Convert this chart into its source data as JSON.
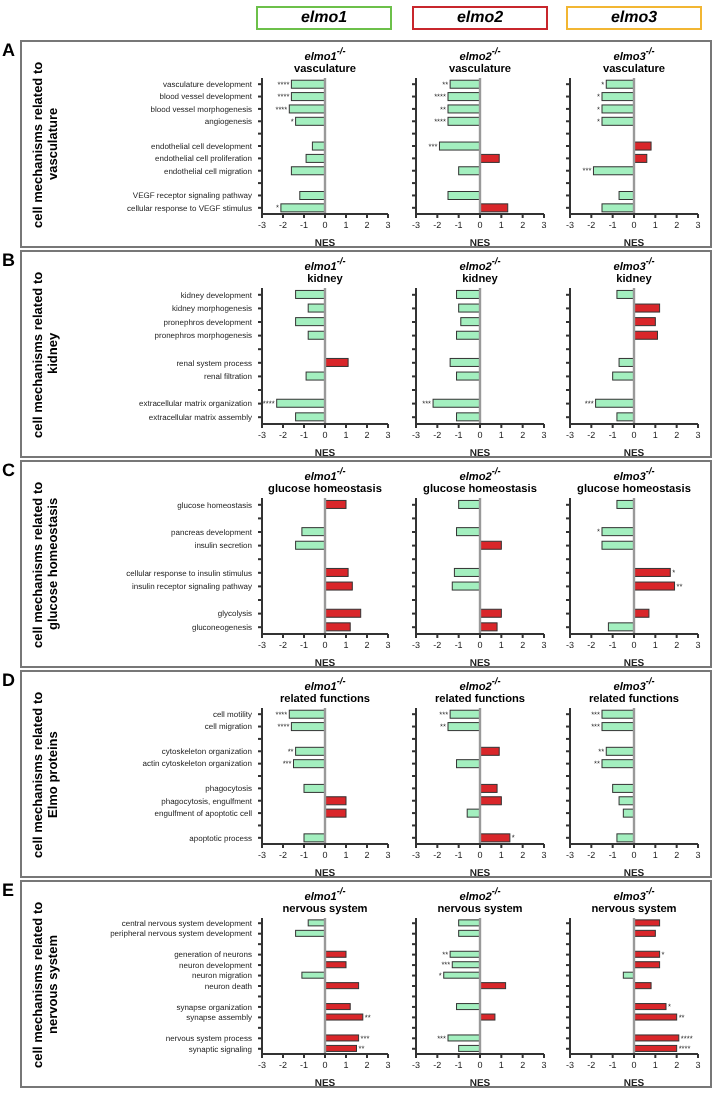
{
  "chart_data": [
    {
      "type": "other",
      "annotations": [
        "elmo1",
        "elmo2",
        "elmo3"
      ],
      "colors": [
        "#6cc04a",
        "#c8262c",
        "#f2b632"
      ]
    },
    {
      "type": "bar",
      "orientation": "horizontal",
      "annotations": [
        "A"
      ],
      "ylabel": "cell mechanisms related to vasculature",
      "title": "elmo1$^{-/-}$",
      "subtitle": "vasculature",
      "xlabel": "NES",
      "categories": [
        "vasculature development",
        "blood vessel development",
        "blood vessel morphogenesis",
        "angiogenesis",
        null,
        "endothelial cell development",
        "endothelial cell proliferation",
        "endothelial cell migration",
        null,
        "VEGF receptor signaling pathway",
        "cellular response to VEGF stimulus"
      ],
      "values": [
        -1.6,
        -1.6,
        -1.7,
        -1.4,
        null,
        -0.6,
        -0.9,
        -1.6,
        null,
        -1.2,
        -2.1
      ],
      "colors": [
        "#a3efbf",
        "#a3efbf",
        "#a3efbf",
        "#a3efbf",
        null,
        "#a3efbf",
        "#a3efbf",
        "#a3efbf",
        null,
        "#a3efbf",
        "#a3efbf"
      ],
      "value_labels": [
        "****",
        "****",
        "****",
        "*",
        null,
        null,
        null,
        null,
        null,
        null,
        "*"
      ],
      "xlim": [
        -3,
        3
      ],
      "xticks": [
        -3,
        -2,
        -1,
        0,
        1,
        2,
        3
      ],
      "ref_lines": [
        {
          "axis": "x",
          "value": 0,
          "color": "#999999"
        }
      ]
    },
    {
      "type": "bar",
      "orientation": "horizontal",
      "title": "elmo2$^{-/-}$",
      "subtitle": "vasculature",
      "xlabel": "NES",
      "categories": [
        null,
        null,
        null,
        null,
        null,
        null,
        null,
        null,
        null,
        null,
        null
      ],
      "values": [
        -1.4,
        -1.5,
        -1.5,
        -1.5,
        null,
        -1.9,
        0.9,
        -1.0,
        null,
        -1.5,
        1.3
      ],
      "colors": [
        "#a3efbf",
        "#a3efbf",
        "#a3efbf",
        "#a3efbf",
        null,
        "#a3efbf",
        "#d9262a",
        "#a3efbf",
        null,
        "#a3efbf",
        "#d9262a"
      ],
      "value_labels": [
        "**",
        "****",
        "**",
        "****",
        null,
        "***",
        null,
        null,
        null,
        null,
        null
      ],
      "xlim": [
        -3,
        3
      ],
      "xticks": [
        -3,
        -2,
        -1,
        0,
        1,
        2,
        3
      ],
      "ref_lines": [
        {
          "axis": "x",
          "value": 0,
          "color": "#999999"
        }
      ]
    },
    {
      "type": "bar",
      "orientation": "horizontal",
      "title": "elmo3$^{-/-}$",
      "subtitle": "vasculature",
      "xlabel": "NES",
      "categories": [
        null,
        null,
        null,
        null,
        null,
        null,
        null,
        null,
        null,
        null,
        null
      ],
      "values": [
        -1.3,
        -1.5,
        -1.5,
        -1.5,
        null,
        0.8,
        0.6,
        -1.9,
        null,
        -0.7,
        -1.5
      ],
      "colors": [
        "#a3efbf",
        "#a3efbf",
        "#a3efbf",
        "#a3efbf",
        null,
        "#d9262a",
        "#d9262a",
        "#a3efbf",
        null,
        "#a3efbf",
        "#a3efbf"
      ],
      "value_labels": [
        "*",
        "*",
        "*",
        "*",
        null,
        null,
        null,
        "***",
        null,
        null,
        null
      ],
      "xlim": [
        -3,
        3
      ],
      "xticks": [
        -3,
        -2,
        -1,
        0,
        1,
        2,
        3
      ],
      "ref_lines": [
        {
          "axis": "x",
          "value": 0,
          "color": "#999999"
        }
      ]
    },
    {
      "type": "bar",
      "orientation": "horizontal",
      "annotations": [
        "B"
      ],
      "ylabel": "cell mechanisms related to kidney",
      "title": "elmo1$^{-/-}$",
      "subtitle": "kidney",
      "xlabel": "NES",
      "categories": [
        "kidney development",
        "kidney morphogenesis",
        "pronephros development",
        "pronephros morphogenesis",
        null,
        "renal system process",
        "renal filtration",
        null,
        "extracellular matrix organization",
        "extracellular matrix assembly"
      ],
      "values": [
        -1.4,
        -0.8,
        -1.4,
        -0.8,
        null,
        1.1,
        -0.9,
        null,
        -2.3,
        -1.4
      ],
      "colors": [
        "#a3efbf",
        "#a3efbf",
        "#a3efbf",
        "#a3efbf",
        null,
        "#d9262a",
        "#a3efbf",
        null,
        "#a3efbf",
        "#a3efbf"
      ],
      "value_labels": [
        null,
        null,
        null,
        null,
        null,
        null,
        null,
        null,
        "****",
        null
      ],
      "xlim": [
        -3,
        3
      ],
      "xticks": [
        -3,
        -2,
        -1,
        0,
        1,
        2,
        3
      ],
      "ref_lines": [
        {
          "axis": "x",
          "value": 0,
          "color": "#999999"
        }
      ]
    },
    {
      "type": "bar",
      "orientation": "horizontal",
      "title": "elmo2$^{-/-}$",
      "subtitle": "kidney",
      "xlabel": "NES",
      "categories": [
        null,
        null,
        null,
        null,
        null,
        null,
        null,
        null,
        null,
        null
      ],
      "values": [
        -1.1,
        -1.0,
        -0.9,
        -1.1,
        null,
        -1.4,
        -1.1,
        null,
        -2.2,
        -1.1
      ],
      "colors": [
        "#a3efbf",
        "#a3efbf",
        "#a3efbf",
        "#a3efbf",
        null,
        "#a3efbf",
        "#a3efbf",
        null,
        "#a3efbf",
        "#a3efbf"
      ],
      "value_labels": [
        null,
        null,
        null,
        null,
        null,
        null,
        null,
        null,
        "***",
        null
      ],
      "xlim": [
        -3,
        3
      ],
      "xticks": [
        -3,
        -2,
        -1,
        0,
        1,
        2,
        3
      ],
      "ref_lines": [
        {
          "axis": "x",
          "value": 0,
          "color": "#999999"
        }
      ]
    },
    {
      "type": "bar",
      "orientation": "horizontal",
      "title": "elmo3$^{-/-}$",
      "subtitle": "kidney",
      "xlabel": "NES",
      "categories": [
        null,
        null,
        null,
        null,
        null,
        null,
        null,
        null,
        null,
        null
      ],
      "values": [
        -0.8,
        1.2,
        1.0,
        1.1,
        null,
        -0.7,
        -1.0,
        null,
        -1.8,
        -0.8
      ],
      "colors": [
        "#a3efbf",
        "#d9262a",
        "#d9262a",
        "#d9262a",
        null,
        "#a3efbf",
        "#a3efbf",
        null,
        "#a3efbf",
        "#a3efbf"
      ],
      "value_labels": [
        null,
        null,
        null,
        null,
        null,
        null,
        null,
        null,
        "***",
        null
      ],
      "xlim": [
        -3,
        3
      ],
      "xticks": [
        -3,
        -2,
        -1,
        0,
        1,
        2,
        3
      ],
      "ref_lines": [
        {
          "axis": "x",
          "value": 0,
          "color": "#999999"
        }
      ]
    },
    {
      "type": "bar",
      "orientation": "horizontal",
      "annotations": [
        "C"
      ],
      "ylabel": "cell mechanisms related to glucose homeostasis",
      "title": "elmo1$^{-/-}$",
      "subtitle": "glucose homeostasis",
      "xlabel": "NES",
      "categories": [
        "glucose homeostasis",
        null,
        "pancreas development",
        "insulin secretion",
        null,
        "cellular response to insulin stimulus",
        "insulin receptor signaling pathway",
        null,
        "glycolysis",
        "gluconeogenesis"
      ],
      "values": [
        1.0,
        null,
        -1.1,
        -1.4,
        null,
        1.1,
        1.3,
        null,
        1.7,
        1.2
      ],
      "colors": [
        "#d9262a",
        null,
        "#a3efbf",
        "#a3efbf",
        null,
        "#d9262a",
        "#d9262a",
        null,
        "#d9262a",
        "#d9262a"
      ],
      "xlim": [
        -3,
        3
      ],
      "xticks": [
        -3,
        -2,
        -1,
        0,
        1,
        2,
        3
      ],
      "ref_lines": [
        {
          "axis": "x",
          "value": 0,
          "color": "#999999"
        }
      ]
    },
    {
      "type": "bar",
      "orientation": "horizontal",
      "title": "elmo2$^{-/-}$",
      "subtitle": "glucose homeostasis",
      "xlabel": "NES",
      "categories": [
        null,
        null,
        null,
        null,
        null,
        null,
        null,
        null,
        null,
        null
      ],
      "values": [
        -1.0,
        null,
        -1.1,
        1.0,
        null,
        -1.2,
        -1.3,
        null,
        1.0,
        0.8
      ],
      "colors": [
        "#a3efbf",
        null,
        "#a3efbf",
        "#d9262a",
        null,
        "#a3efbf",
        "#a3efbf",
        null,
        "#d9262a",
        "#d9262a"
      ],
      "xlim": [
        -3,
        3
      ],
      "xticks": [
        -3,
        -2,
        -1,
        0,
        1,
        2,
        3
      ],
      "ref_lines": [
        {
          "axis": "x",
          "value": 0,
          "color": "#999999"
        }
      ]
    },
    {
      "type": "bar",
      "orientation": "horizontal",
      "title": "elmo3$^{-/-}$",
      "subtitle": "glucose homeostasis",
      "xlabel": "NES",
      "categories": [
        null,
        null,
        null,
        null,
        null,
        null,
        null,
        null,
        null,
        null
      ],
      "values": [
        -0.8,
        null,
        -1.5,
        -1.5,
        null,
        1.7,
        1.9,
        null,
        0.7,
        -1.2
      ],
      "colors": [
        "#a3efbf",
        null,
        "#a3efbf",
        "#a3efbf",
        null,
        "#d9262a",
        "#d9262a",
        null,
        "#d9262a",
        "#a3efbf"
      ],
      "value_labels": [
        null,
        null,
        "*",
        null,
        null,
        "*",
        "**",
        null,
        null,
        null
      ],
      "xlim": [
        -3,
        3
      ],
      "xticks": [
        -3,
        -2,
        -1,
        0,
        1,
        2,
        3
      ],
      "ref_lines": [
        {
          "axis": "x",
          "value": 0,
          "color": "#999999"
        }
      ]
    },
    {
      "type": "bar",
      "orientation": "horizontal",
      "annotations": [
        "D"
      ],
      "ylabel": "cell mechanisms related to Elmo proteins",
      "title": "elmo1$^{-/-}$",
      "subtitle": "related functions",
      "xlabel": "NES",
      "categories": [
        "cell motility",
        "cell migration",
        null,
        "cytoskeleton organization",
        "actin cytoskeleton organization",
        null,
        "phagocytosis",
        "phagocytosis, engulfment",
        "engulfment of apoptotic cell",
        null,
        "apoptotic process"
      ],
      "values": [
        -1.7,
        -1.6,
        null,
        -1.4,
        -1.5,
        null,
        -1.0,
        1.0,
        1.0,
        null,
        -1.0
      ],
      "colors": [
        "#a3efbf",
        "#a3efbf",
        null,
        "#a3efbf",
        "#a3efbf",
        null,
        "#a3efbf",
        "#d9262a",
        "#d9262a",
        null,
        "#a3efbf"
      ],
      "value_labels": [
        "****",
        "****",
        null,
        "**",
        "***",
        null,
        null,
        null,
        null,
        null,
        null
      ],
      "xlim": [
        -3,
        3
      ],
      "xticks": [
        -3,
        -2,
        -1,
        0,
        1,
        2,
        3
      ],
      "ref_lines": [
        {
          "axis": "x",
          "value": 0,
          "color": "#999999"
        }
      ]
    },
    {
      "type": "bar",
      "orientation": "horizontal",
      "title": "elmo2$^{-/-}$",
      "subtitle": "related functions",
      "xlabel": "NES",
      "categories": [
        null,
        null,
        null,
        null,
        null,
        null,
        null,
        null,
        null,
        null,
        null
      ],
      "values": [
        -1.4,
        -1.5,
        null,
        0.9,
        -1.1,
        null,
        0.8,
        1.0,
        -0.6,
        null,
        1.4
      ],
      "colors": [
        "#a3efbf",
        "#a3efbf",
        null,
        "#d9262a",
        "#a3efbf",
        null,
        "#d9262a",
        "#d9262a",
        "#a3efbf",
        null,
        "#d9262a"
      ],
      "value_labels": [
        "***",
        "**",
        null,
        null,
        null,
        null,
        null,
        null,
        null,
        null,
        "*"
      ],
      "xlim": [
        -3,
        3
      ],
      "xticks": [
        -3,
        -2,
        -1,
        0,
        1,
        2,
        3
      ],
      "ref_lines": [
        {
          "axis": "x",
          "value": 0,
          "color": "#999999"
        }
      ]
    },
    {
      "type": "bar",
      "orientation": "horizontal",
      "title": "elmo3$^{-/-}$",
      "subtitle": "related functions",
      "xlabel": "NES",
      "categories": [
        null,
        null,
        null,
        null,
        null,
        null,
        null,
        null,
        null,
        null,
        null
      ],
      "values": [
        -1.5,
        -1.5,
        null,
        -1.3,
        -1.5,
        null,
        -1.0,
        -0.7,
        -0.5,
        null,
        -0.8
      ],
      "colors": [
        "#a3efbf",
        "#a3efbf",
        null,
        "#a3efbf",
        "#a3efbf",
        null,
        "#a3efbf",
        "#a3efbf",
        "#a3efbf",
        null,
        "#a3efbf"
      ],
      "value_labels": [
        "***",
        "***",
        null,
        "**",
        "**",
        null,
        null,
        null,
        null,
        null,
        null
      ],
      "xlim": [
        -3,
        3
      ],
      "xticks": [
        -3,
        -2,
        -1,
        0,
        1,
        2,
        3
      ],
      "ref_lines": [
        {
          "axis": "x",
          "value": 0,
          "color": "#999999"
        }
      ]
    },
    {
      "type": "bar",
      "orientation": "horizontal",
      "annotations": [
        "E"
      ],
      "ylabel": "cell mechanisms related to nervous system",
      "title": "elmo1$^{-/-}$",
      "subtitle": "nervous system",
      "xlabel": "NES",
      "categories": [
        "central nervous system development",
        "peripheral nervous system development",
        null,
        "generation of neurons",
        "neuron development",
        "neuron migration",
        "neuron death",
        null,
        "synapse organization",
        "synapse assembly",
        null,
        "nervous system process",
        "synaptic signaling"
      ],
      "values": [
        -0.8,
        -1.4,
        null,
        1.0,
        1.0,
        -1.1,
        1.6,
        null,
        1.2,
        1.8,
        null,
        1.6,
        1.5
      ],
      "colors": [
        "#a3efbf",
        "#a3efbf",
        null,
        "#d9262a",
        "#d9262a",
        "#a3efbf",
        "#d9262a",
        null,
        "#d9262a",
        "#d9262a",
        null,
        "#d9262a",
        "#d9262a"
      ],
      "value_labels": [
        null,
        null,
        null,
        null,
        null,
        null,
        null,
        null,
        null,
        "**",
        null,
        "***",
        "**"
      ],
      "xlim": [
        -3,
        3
      ],
      "xticks": [
        -3,
        -2,
        -1,
        0,
        1,
        2,
        3
      ],
      "ref_lines": [
        {
          "axis": "x",
          "value": 0,
          "color": "#999999"
        }
      ]
    },
    {
      "type": "bar",
      "orientation": "horizontal",
      "title": "elmo2$^{-/-}$",
      "subtitle": "nervous system",
      "xlabel": "NES",
      "categories": [
        null,
        null,
        null,
        null,
        null,
        null,
        null,
        null,
        null,
        null,
        null,
        null,
        null
      ],
      "values": [
        -1.0,
        -1.0,
        null,
        -1.4,
        -1.3,
        -1.7,
        1.2,
        null,
        -1.1,
        0.7,
        null,
        -1.5,
        -1.0
      ],
      "colors": [
        "#a3efbf",
        "#a3efbf",
        null,
        "#a3efbf",
        "#a3efbf",
        "#a3efbf",
        "#d9262a",
        null,
        "#a3efbf",
        "#d9262a",
        null,
        "#a3efbf",
        "#a3efbf"
      ],
      "value_labels": [
        null,
        null,
        null,
        "**",
        "***",
        "*",
        null,
        null,
        null,
        null,
        null,
        "***",
        null
      ],
      "xlim": [
        -3,
        3
      ],
      "xticks": [
        -3,
        -2,
        -1,
        0,
        1,
        2,
        3
      ],
      "ref_lines": [
        {
          "axis": "x",
          "value": 0,
          "color": "#999999"
        }
      ]
    },
    {
      "type": "bar",
      "orientation": "horizontal",
      "title": "elmo3$^{-/-}$",
      "subtitle": "nervous system",
      "xlabel": "NES",
      "categories": [
        null,
        null,
        null,
        null,
        null,
        null,
        null,
        null,
        null,
        null,
        null,
        null,
        null
      ],
      "values": [
        1.2,
        1.0,
        null,
        1.2,
        1.2,
        -0.5,
        0.8,
        null,
        1.5,
        2.0,
        null,
        2.1,
        2.0
      ],
      "colors": [
        "#d9262a",
        "#d9262a",
        null,
        "#d9262a",
        "#d9262a",
        "#a3efbf",
        "#d9262a",
        null,
        "#d9262a",
        "#d9262a",
        null,
        "#d9262a",
        "#d9262a"
      ],
      "value_labels": [
        null,
        null,
        null,
        "*",
        null,
        null,
        null,
        null,
        "*",
        "**",
        null,
        "****",
        "****"
      ],
      "xlim": [
        -3,
        3
      ],
      "xticks": [
        -3,
        -2,
        -1,
        0,
        1,
        2,
        3
      ],
      "ref_lines": [
        {
          "axis": "x",
          "value": 0,
          "color": "#999999"
        }
      ]
    }
  ]
}
